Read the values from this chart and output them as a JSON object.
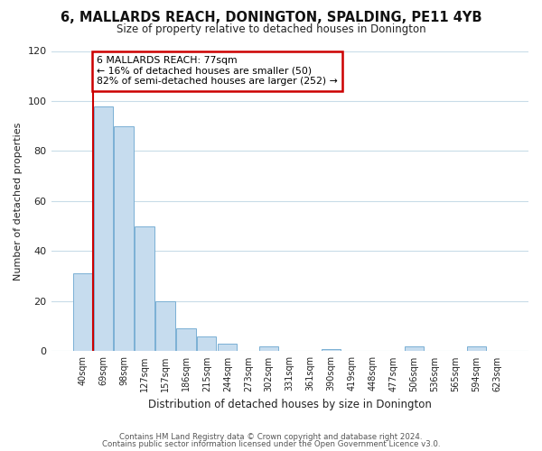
{
  "title": "6, MALLARDS REACH, DONINGTON, SPALDING, PE11 4YB",
  "subtitle": "Size of property relative to detached houses in Donington",
  "xlabel": "Distribution of detached houses by size in Donington",
  "ylabel": "Number of detached properties",
  "bar_labels": [
    "40sqm",
    "69sqm",
    "98sqm",
    "127sqm",
    "157sqm",
    "186sqm",
    "215sqm",
    "244sqm",
    "273sqm",
    "302sqm",
    "331sqm",
    "361sqm",
    "390sqm",
    "419sqm",
    "448sqm",
    "477sqm",
    "506sqm",
    "536sqm",
    "565sqm",
    "594sqm",
    "623sqm"
  ],
  "bar_values": [
    31,
    98,
    90,
    50,
    20,
    9,
    6,
    3,
    0,
    2,
    0,
    0,
    1,
    0,
    0,
    0,
    2,
    0,
    0,
    2,
    0
  ],
  "bar_color": "#c6dcee",
  "bar_edge_color": "#7ab0d4",
  "vline_x_bar_index": 1,
  "annotation_title": "6 MALLARDS REACH: 77sqm",
  "annotation_line1": "← 16% of detached houses are smaller (50)",
  "annotation_line2": "82% of semi-detached houses are larger (252) →",
  "annotation_box_color": "#ffffff",
  "annotation_box_edge": "#cc0000",
  "vline_color": "#cc0000",
  "ylim": [
    0,
    120
  ],
  "yticks": [
    0,
    20,
    40,
    60,
    80,
    100,
    120
  ],
  "footer_line1": "Contains HM Land Registry data © Crown copyright and database right 2024.",
  "footer_line2": "Contains public sector information licensed under the Open Government Licence v3.0.",
  "bg_color": "#ffffff",
  "grid_color": "#c8dce8"
}
